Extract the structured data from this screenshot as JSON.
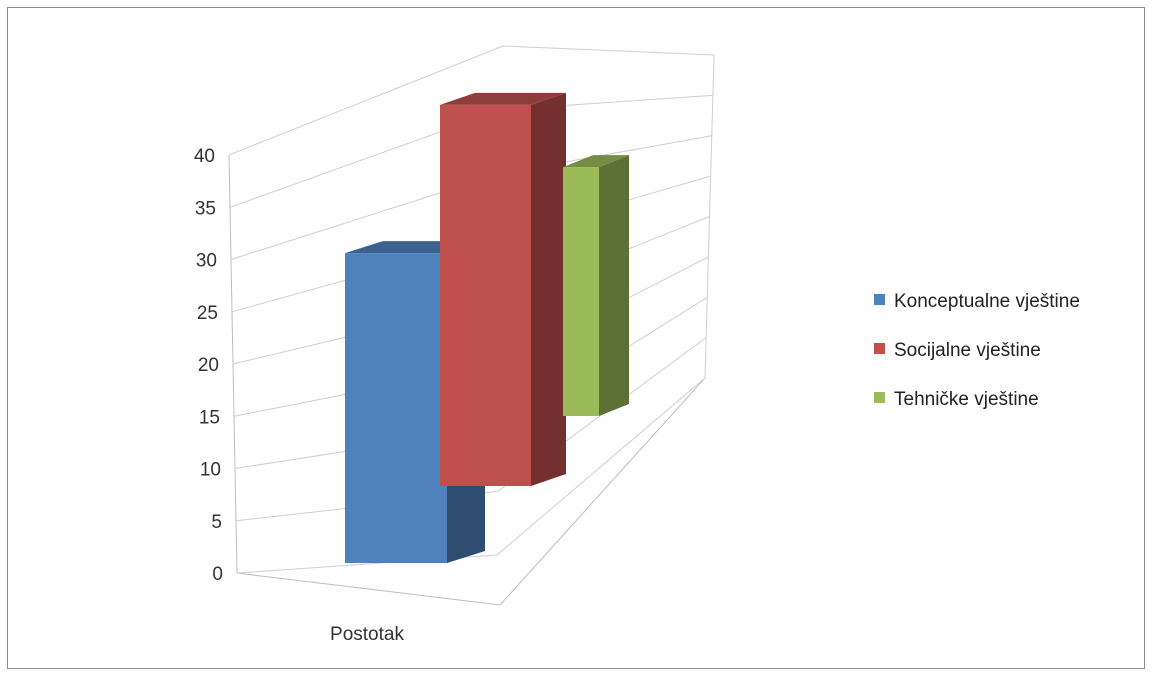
{
  "chart_data": {
    "type": "bar",
    "style": "3d-clustered-column",
    "title": "",
    "xlabel": "",
    "ylabel": "",
    "categories": [
      "Postotak"
    ],
    "series": [
      {
        "name": "Konceptualne vještine",
        "values": [
          30
        ],
        "color": "#4F81BD"
      },
      {
        "name": "Socijalne vještine",
        "values": [
          38
        ],
        "color": "#C0504D"
      },
      {
        "name": "Tehničke vještine",
        "values": [
          24
        ],
        "color": "#9BBB59"
      }
    ],
    "ylim": [
      0,
      40
    ],
    "yticks": [
      0,
      5,
      10,
      15,
      20,
      25,
      30,
      35,
      40
    ],
    "grid": true,
    "legend_position": "right"
  }
}
